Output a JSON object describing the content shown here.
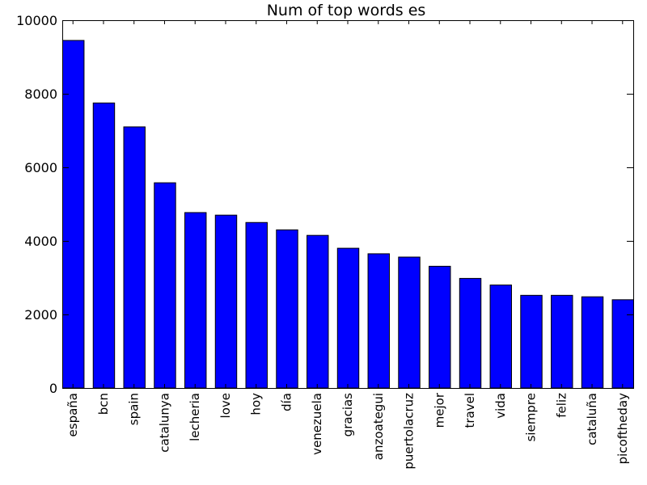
{
  "chart_data": {
    "type": "bar",
    "title": "Num of top words es",
    "xlabel": "",
    "ylabel": "",
    "categories": [
      "españa",
      "bcn",
      "spain",
      "catalunya",
      "lecheria",
      "love",
      "hoy",
      "día",
      "venezuela",
      "gracias",
      "anzoategui",
      "puertolacruz",
      "mejor",
      "travel",
      "vida",
      "siempre",
      "feliz",
      "cataluña",
      "picoftheday"
    ],
    "values": [
      9450,
      7750,
      7100,
      5580,
      4770,
      4700,
      4500,
      4300,
      4150,
      3800,
      3650,
      3560,
      3310,
      2980,
      2800,
      2520,
      2520,
      2480,
      2400
    ],
    "ylim": [
      0,
      10000
    ],
    "yticks": [
      0,
      2000,
      4000,
      6000,
      8000,
      10000
    ],
    "bar_color": "#0000ff",
    "grid": false,
    "legend": "none"
  }
}
